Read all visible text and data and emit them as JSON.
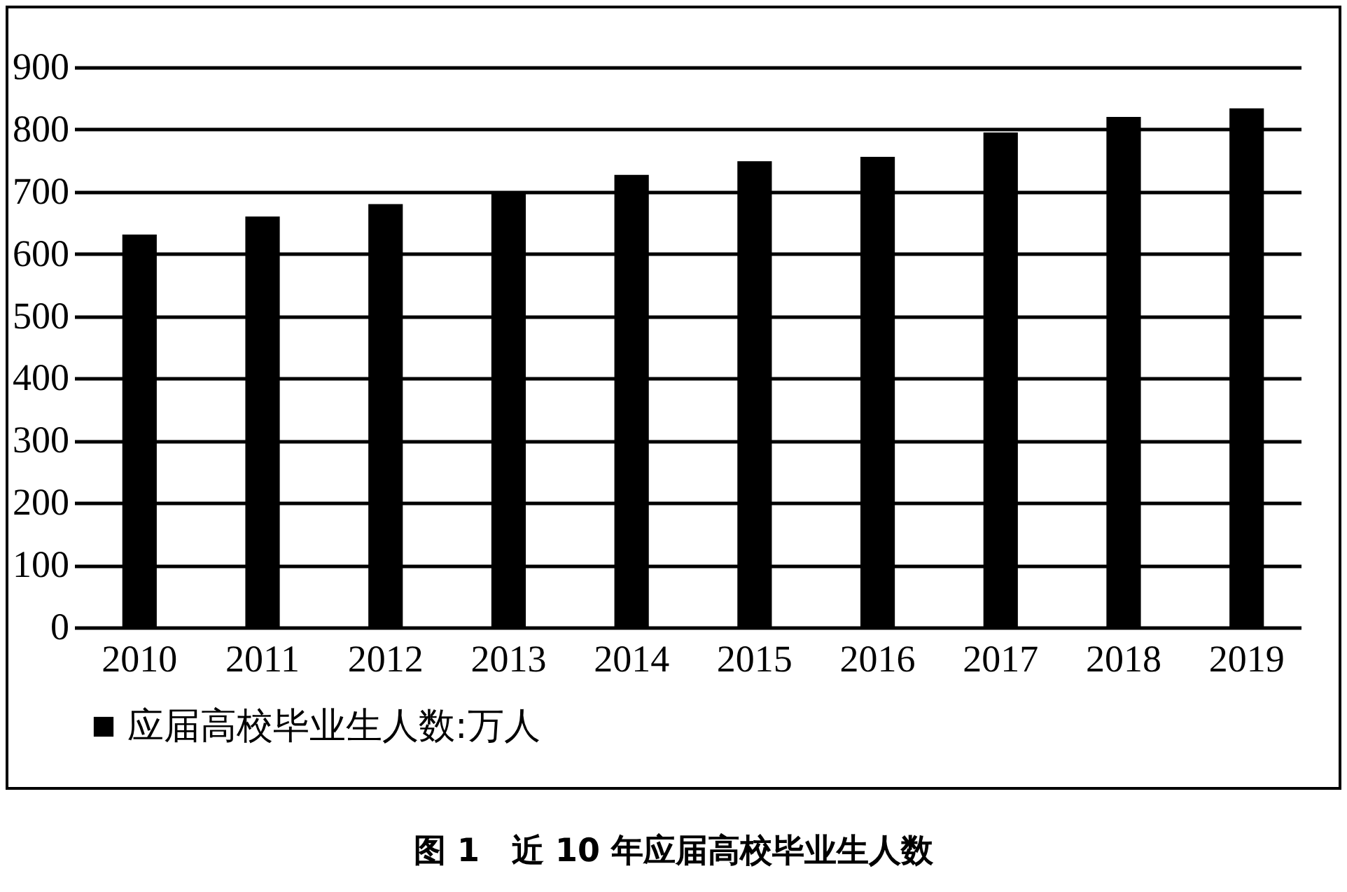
{
  "chart_data": {
    "type": "bar",
    "title": "图 1　近 10 年应届高校毕业生人数",
    "categories": [
      "2010",
      "2011",
      "2012",
      "2013",
      "2014",
      "2015",
      "2016",
      "2017",
      "2018",
      "2019"
    ],
    "series": [
      {
        "name": "应届高校毕业生人数:万人",
        "color": "#000000",
        "values": [
          631,
          660,
          680,
          699,
          727,
          749,
          756,
          795,
          820,
          834
        ]
      }
    ],
    "ylim": [
      0,
      900
    ],
    "yticks": [
      0,
      100,
      200,
      300,
      400,
      500,
      600,
      700,
      800,
      900
    ],
    "grid": "y",
    "legend": "bottom"
  }
}
